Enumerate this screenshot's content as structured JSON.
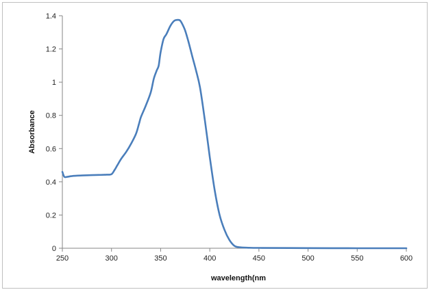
{
  "chart_data": {
    "type": "line",
    "title": "",
    "xlabel": "wavelength(nm",
    "ylabel": "Absorbance",
    "xlim": [
      250,
      600
    ],
    "ylim": [
      0,
      1.4
    ],
    "x_ticks": [
      "250",
      "300",
      "350",
      "400",
      "450",
      "500",
      "550",
      "600"
    ],
    "y_ticks": [
      "0",
      "0.2",
      "0.4",
      "0.6",
      "0.8",
      "1",
      "1.2",
      "1.4"
    ],
    "grid": false,
    "legend": "none",
    "series": [
      {
        "color": "#4a7ebb",
        "x": [
          250,
          252,
          255,
          260,
          270,
          280,
          290,
          295,
          300,
          303,
          306,
          310,
          315,
          320,
          325,
          328,
          330,
          335,
          340,
          343,
          346,
          348,
          350,
          353,
          356,
          360,
          364,
          368,
          370,
          372,
          375,
          378,
          382,
          386,
          390,
          395,
          400,
          405,
          410,
          415,
          420,
          425,
          430,
          440,
          450,
          500,
          550,
          600
        ],
        "y": [
          0.46,
          0.43,
          0.43,
          0.435,
          0.438,
          0.44,
          0.442,
          0.443,
          0.446,
          0.47,
          0.5,
          0.54,
          0.58,
          0.63,
          0.69,
          0.75,
          0.79,
          0.86,
          0.94,
          1.02,
          1.07,
          1.1,
          1.18,
          1.26,
          1.29,
          1.34,
          1.37,
          1.375,
          1.37,
          1.35,
          1.31,
          1.25,
          1.16,
          1.07,
          0.97,
          0.77,
          0.55,
          0.35,
          0.2,
          0.11,
          0.05,
          0.015,
          0.006,
          0.003,
          0.002,
          0.001,
          0.0,
          0.0
        ]
      }
    ]
  }
}
